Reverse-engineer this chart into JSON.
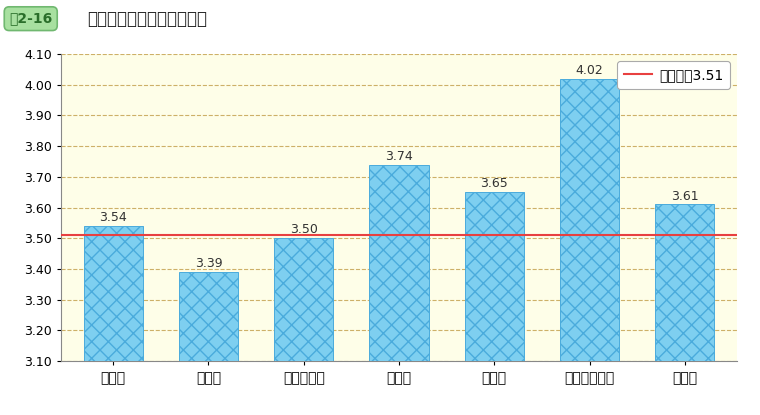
{
  "title_label": "図2-16",
  "title_text": "職制段階別の回答の平均値",
  "categories": [
    "係員級",
    "係長級",
    "課長補佐級",
    "室長級",
    "課長級",
    "審議官級以上",
    "その他"
  ],
  "values": [
    3.54,
    3.39,
    3.5,
    3.74,
    3.65,
    4.02,
    3.61
  ],
  "average_line": 3.51,
  "average_label": "総平均値3.51",
  "ylim": [
    3.1,
    4.1
  ],
  "yticks": [
    3.1,
    3.2,
    3.3,
    3.4,
    3.5,
    3.6,
    3.7,
    3.8,
    3.9,
    4.0,
    4.1
  ],
  "bar_face_color": "#7ECFF0",
  "bar_edge_color": "#4AABDC",
  "average_line_color": "#E84040",
  "grid_color": "#C8A85A",
  "background_color": "#FEFEE8",
  "figure_background": "#FFFFFF",
  "title_box_facecolor": "#A8E0A0",
  "title_box_edgecolor": "#70B870",
  "title_box_textcolor": "#2A6E2A",
  "bar_width": 0.62,
  "title_fontsize": 12,
  "label_fontsize": 9,
  "tick_fontsize": 9,
  "value_fontsize": 9,
  "legend_fontsize": 9
}
